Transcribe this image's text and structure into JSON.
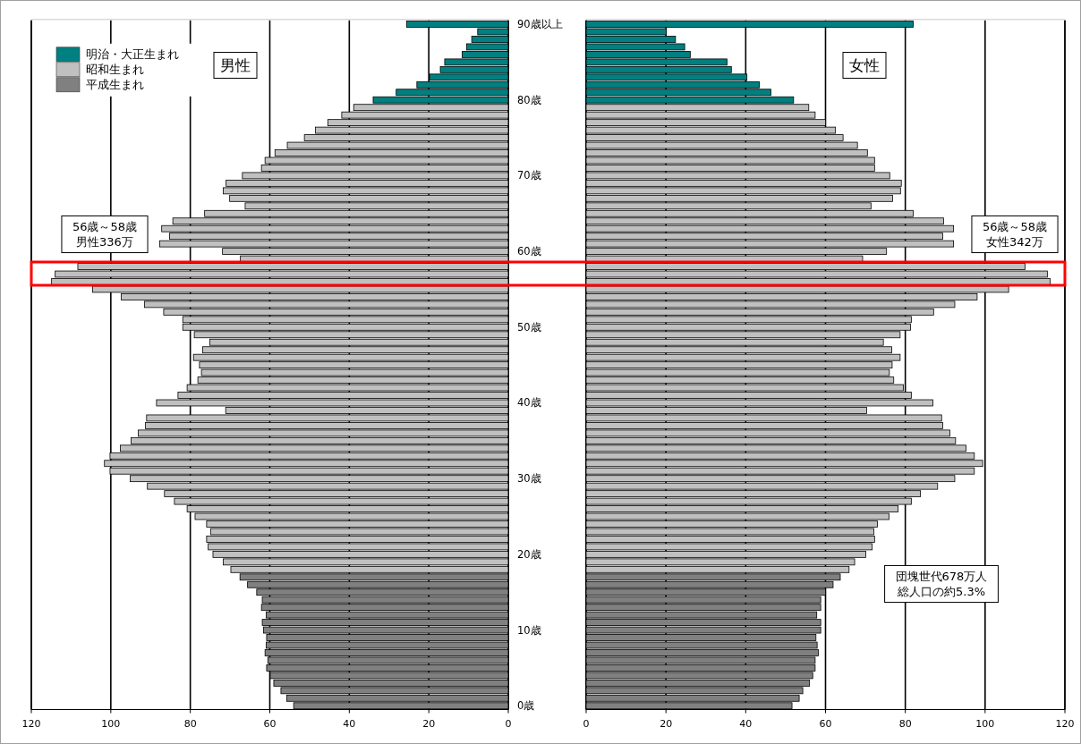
{
  "chart_data": [
    {
      "type": "bar",
      "orientation": "horizontal",
      "title": "男性",
      "xlim": [
        120,
        0
      ],
      "xticks": [
        120,
        100,
        80,
        60,
        40,
        20,
        0
      ],
      "grid": "x",
      "legend": "top left",
      "tick_labels": "x",
      "categories": [
        null,
        null,
        null,
        null,
        null,
        null,
        null,
        null,
        null,
        null,
        null,
        null,
        null,
        null,
        null,
        null,
        null,
        null,
        null,
        null,
        null,
        null,
        null,
        null,
        null,
        null,
        null,
        null,
        null,
        null,
        null,
        null,
        null,
        null,
        null,
        null,
        null,
        null,
        null,
        null,
        null,
        null,
        null,
        null,
        null,
        null,
        null,
        null,
        null,
        null,
        null,
        null,
        null,
        null,
        null,
        null,
        null,
        null,
        null,
        null,
        null,
        null,
        null,
        null,
        null,
        null,
        null,
        null,
        null,
        null,
        null,
        null,
        null,
        null,
        null,
        null,
        null,
        null,
        null,
        null,
        null,
        null,
        null,
        null,
        null,
        null,
        null,
        null,
        null,
        null,
        null
      ],
      "series": [
        {
          "name": "明治・大正生まれ",
          "color": "#008080",
          "values": [
            25.6,
            7.7,
            9.2,
            10.5,
            11.6,
            16.0,
            17.1,
            19.8,
            23.0,
            28.2,
            34.0,
            null,
            null,
            null,
            null,
            null,
            null,
            null,
            null,
            null,
            null,
            null,
            null,
            null,
            null,
            null,
            null,
            null,
            null,
            null,
            null,
            null,
            null,
            null,
            null,
            null,
            null,
            null,
            null,
            null,
            null,
            null,
            null,
            null,
            null,
            null,
            null,
            null,
            null,
            null,
            null,
            null,
            null,
            null,
            null,
            null,
            null,
            null,
            null,
            null,
            null,
            null,
            null,
            null,
            null,
            null,
            null,
            null,
            null,
            null,
            null,
            null,
            null,
            null,
            null,
            null,
            null,
            null,
            null,
            null,
            null,
            null,
            null,
            null,
            null,
            null,
            null,
            null,
            null,
            null,
            null
          ]
        },
        {
          "name": "昭和生まれ",
          "color": "#c0c0c0",
          "values": [
            null,
            null,
            null,
            null,
            null,
            null,
            null,
            null,
            null,
            null,
            null,
            38.9,
            41.9,
            45.4,
            48.5,
            51.3,
            55.6,
            58.7,
            61.2,
            62.1,
            66.9,
            71.0,
            71.7,
            70.1,
            66.2,
            76.4,
            84.4,
            87.2,
            85.2,
            87.7,
            71.9,
            67.4,
            108.3,
            114.0,
            114.9,
            104.6,
            97.4,
            91.5,
            86.7,
            81.9,
            81.9,
            79.0,
            75.1,
            76.9,
            79.2,
            77.7,
            77.2,
            78.1,
            80.8,
            83.1,
            88.5,
            71.1,
            91.0,
            91.3,
            93.1,
            94.9,
            97.6,
            100.2,
            101.6,
            100.2,
            95.1,
            90.8,
            86.5,
            84.0,
            80.8,
            78.8,
            75.9,
            74.9,
            75.9,
            75.5,
            74.3,
            71.7,
            69.8,
            null,
            null,
            null,
            null,
            null,
            null,
            null,
            null,
            null,
            null,
            null,
            null,
            null,
            null,
            null,
            null,
            null,
            null
          ]
        },
        {
          "name": "平成生まれ",
          "color": "#808080",
          "values": [
            null,
            null,
            null,
            null,
            null,
            null,
            null,
            null,
            null,
            null,
            null,
            null,
            null,
            null,
            null,
            null,
            null,
            null,
            null,
            null,
            null,
            null,
            null,
            null,
            null,
            null,
            null,
            null,
            null,
            null,
            null,
            null,
            null,
            null,
            null,
            null,
            null,
            null,
            null,
            null,
            null,
            null,
            null,
            null,
            null,
            null,
            null,
            null,
            null,
            null,
            null,
            null,
            null,
            null,
            null,
            null,
            null,
            null,
            null,
            null,
            null,
            null,
            null,
            null,
            null,
            null,
            null,
            null,
            null,
            null,
            null,
            null,
            null,
            67.5,
            65.6,
            63.3,
            61.9,
            62.1,
            60.9,
            61.9,
            61.6,
            60.8,
            60.9,
            61.2,
            60.5,
            60.8,
            59.9,
            59.0,
            57.2,
            55.7,
            54.0
          ]
        }
      ],
      "annotations": [
        "56歳～58歳",
        "男性336万"
      ]
    },
    {
      "type": "bar",
      "orientation": "horizontal",
      "title": "女性",
      "xlim": [
        0,
        120
      ],
      "xticks": [
        0,
        20,
        40,
        60,
        80,
        100,
        120
      ],
      "grid": "x",
      "categories": [
        "90歳以上",
        null,
        null,
        null,
        null,
        null,
        null,
        null,
        null,
        null,
        "80歳",
        null,
        null,
        null,
        null,
        null,
        null,
        null,
        null,
        null,
        "70歳",
        null,
        null,
        null,
        null,
        null,
        null,
        null,
        null,
        null,
        "60歳",
        null,
        null,
        null,
        null,
        null,
        null,
        null,
        null,
        null,
        "50歳",
        null,
        null,
        null,
        null,
        null,
        null,
        null,
        null,
        null,
        "40歳",
        null,
        null,
        null,
        null,
        null,
        null,
        null,
        null,
        null,
        "30歳",
        null,
        null,
        null,
        null,
        null,
        null,
        null,
        null,
        null,
        "20歳",
        null,
        null,
        null,
        null,
        null,
        null,
        null,
        null,
        null,
        "10歳",
        null,
        null,
        null,
        null,
        null,
        null,
        null,
        null,
        null,
        "0歳"
      ],
      "series": [
        {
          "color": "#008080",
          "values": [
            82.0,
            20.1,
            22.4,
            24.7,
            26.1,
            35.3,
            36.4,
            40.3,
            43.4,
            46.3,
            52.0,
            null,
            null,
            null,
            null,
            null,
            null,
            null,
            null,
            null,
            null,
            null,
            null,
            null,
            null,
            null,
            null,
            null,
            null,
            null,
            null,
            null,
            null,
            null,
            null,
            null,
            null,
            null,
            null,
            null,
            null,
            null,
            null,
            null,
            null,
            null,
            null,
            null,
            null,
            null,
            null,
            null,
            null,
            null,
            null,
            null,
            null,
            null,
            null,
            null,
            null,
            null,
            null,
            null,
            null,
            null,
            null,
            null,
            null,
            null,
            null,
            null,
            null,
            null,
            null,
            null,
            null,
            null,
            null,
            null,
            null,
            null,
            null,
            null,
            null,
            null,
            null,
            null,
            null,
            null,
            null
          ]
        },
        {
          "color": "#c0c0c0",
          "values": [
            null,
            null,
            null,
            null,
            null,
            null,
            null,
            null,
            null,
            null,
            null,
            55.8,
            57.4,
            60.0,
            62.5,
            64.4,
            68.0,
            70.5,
            72.3,
            72.3,
            76.1,
            79.0,
            78.8,
            76.8,
            71.4,
            82.0,
            89.6,
            92.1,
            89.4,
            92.1,
            75.3,
            69.3,
            110.0,
            115.6,
            116.3,
            105.9,
            98.0,
            92.4,
            87.1,
            81.5,
            81.3,
            78.7,
            74.5,
            76.6,
            78.7,
            76.7,
            76.0,
            77.1,
            79.5,
            81.5,
            86.9,
            70.3,
            89.1,
            89.4,
            91.2,
            92.6,
            95.2,
            97.3,
            99.4,
            97.3,
            92.4,
            88.1,
            83.8,
            81.5,
            78.2,
            75.9,
            73.0,
            72.1,
            72.3,
            71.7,
            70.1,
            67.3,
            65.9,
            null,
            null,
            null,
            null,
            null,
            null,
            null,
            null,
            null,
            null,
            null,
            null,
            null,
            null,
            null,
            null,
            null,
            null
          ]
        },
        {
          "color": "#808080",
          "values": [
            null,
            null,
            null,
            null,
            null,
            null,
            null,
            null,
            null,
            null,
            null,
            null,
            null,
            null,
            null,
            null,
            null,
            null,
            null,
            null,
            null,
            null,
            null,
            null,
            null,
            null,
            null,
            null,
            null,
            null,
            null,
            null,
            null,
            null,
            null,
            null,
            null,
            null,
            null,
            null,
            null,
            null,
            null,
            null,
            null,
            null,
            null,
            null,
            null,
            null,
            null,
            null,
            null,
            null,
            null,
            null,
            null,
            null,
            null,
            null,
            null,
            null,
            null,
            null,
            null,
            null,
            null,
            null,
            null,
            null,
            null,
            null,
            null,
            63.7,
            61.9,
            60.0,
            58.8,
            58.8,
            57.8,
            58.8,
            58.8,
            57.6,
            57.9,
            58.2,
            57.4,
            57.4,
            56.8,
            56.0,
            54.3,
            53.4,
            51.6
          ]
        }
      ],
      "annotations": [
        "56歳～58歳",
        "女性342万",
        "団塊世代678万人",
        "総人口の約5.3%"
      ]
    }
  ]
}
